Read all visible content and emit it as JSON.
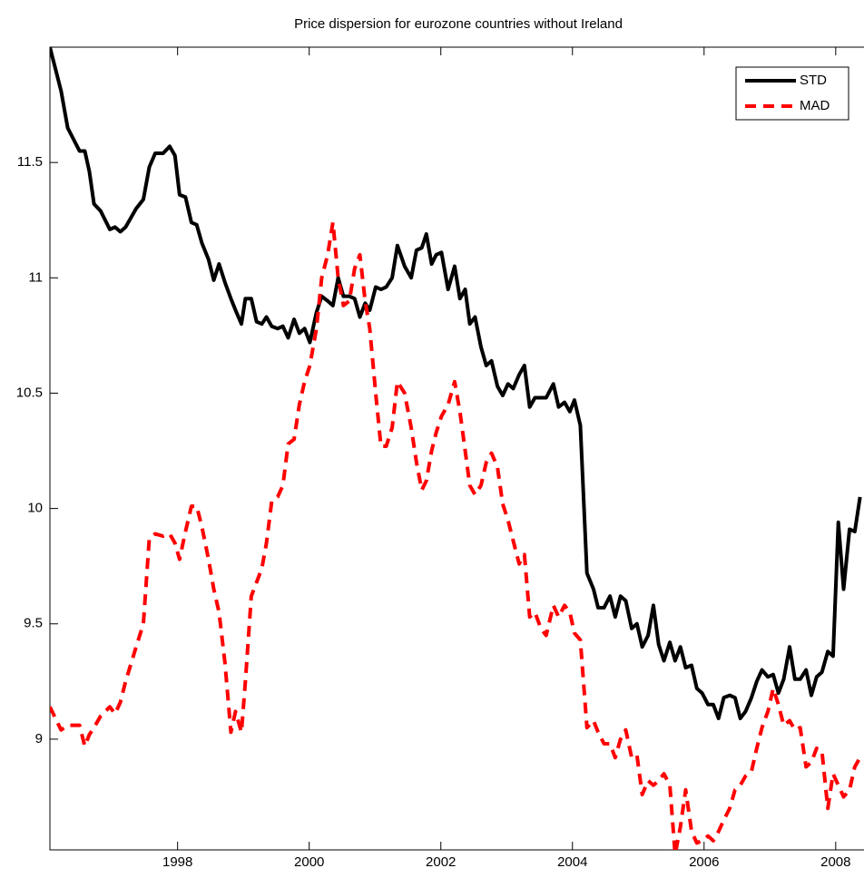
{
  "chart_data": {
    "type": "line",
    "title": "Price dispersion for eurozone countries without Ireland",
    "x": [
      1996.06,
      1996.23,
      1996.33,
      1996.51,
      1996.59,
      1996.66,
      1996.73,
      1996.83,
      1996.97,
      1997.05,
      1997.13,
      1997.21,
      1997.37,
      1997.48,
      1997.57,
      1997.66,
      1997.78,
      1997.88,
      1997.96,
      1998.03,
      1998.12,
      1998.21,
      1998.29,
      1998.37,
      1998.47,
      1998.55,
      1998.63,
      1998.72,
      1998.81,
      1998.88,
      1998.97,
      1999.03,
      1999.12,
      1999.2,
      1999.28,
      1999.35,
      1999.43,
      1999.52,
      1999.6,
      1999.68,
      1999.77,
      1999.85,
      1999.93,
      2000.01,
      2000.11,
      2000.19,
      2000.28,
      2000.36,
      2000.44,
      2000.52,
      2000.61,
      2000.69,
      2000.77,
      2000.85,
      2000.92,
      2001.01,
      2001.09,
      2001.17,
      2001.26,
      2001.34,
      2001.45,
      2001.55,
      2001.63,
      2001.71,
      2001.78,
      2001.86,
      2001.93,
      2002.01,
      2002.11,
      2002.21,
      2002.29,
      2002.37,
      2002.44,
      2002.52,
      2002.61,
      2002.69,
      2002.77,
      2002.86,
      2002.94,
      2003.02,
      2003.1,
      2003.19,
      2003.27,
      2003.35,
      2003.43,
      2003.52,
      2003.6,
      2003.71,
      2003.79,
      2003.88,
      2003.96,
      2004.03,
      2004.12,
      2004.22,
      2004.32,
      2004.39,
      2004.48,
      2004.57,
      2004.65,
      2004.73,
      2004.81,
      2004.9,
      2004.98,
      2005.06,
      2005.15,
      2005.23,
      2005.31,
      2005.39,
      2005.48,
      2005.56,
      2005.64,
      2005.72,
      2005.81,
      2005.89,
      2005.97,
      2006.06,
      2006.14,
      2006.22,
      2006.3,
      2006.39,
      2006.47,
      2006.55,
      2006.63,
      2006.72,
      2006.8,
      2006.88,
      2006.97,
      2007.05,
      2007.13,
      2007.21,
      2007.3,
      2007.38,
      2007.46,
      2007.55,
      2007.63,
      2007.71,
      2007.79,
      2007.88,
      2007.96,
      2008.04,
      2008.12,
      2008.21,
      2008.29,
      2008.37
    ],
    "series": [
      {
        "name": "STD",
        "color": "#000000",
        "line_style": "solid",
        "values": [
          12,
          11.81,
          11.65,
          11.55,
          11.55,
          11.46,
          11.32,
          11.29,
          11.21,
          11.22,
          11.2,
          11.22,
          11.3,
          11.34,
          11.48,
          11.54,
          11.54,
          11.57,
          11.53,
          11.36,
          11.35,
          11.24,
          11.23,
          11.15,
          11.08,
          10.99,
          11.06,
          10.98,
          10.91,
          10.86,
          10.8,
          10.91,
          10.91,
          10.81,
          10.8,
          10.83,
          10.79,
          10.78,
          10.79,
          10.74,
          10.82,
          10.76,
          10.78,
          10.72,
          10.85,
          10.92,
          10.9,
          10.88,
          11,
          10.92,
          10.92,
          10.91,
          10.83,
          10.89,
          10.86,
          10.96,
          10.95,
          10.96,
          11,
          11.14,
          11.05,
          11,
          11.12,
          11.13,
          11.19,
          11.06,
          11.1,
          11.11,
          10.95,
          11.05,
          10.91,
          10.95,
          10.8,
          10.83,
          10.7,
          10.62,
          10.64,
          10.53,
          10.49,
          10.54,
          10.52,
          10.58,
          10.62,
          10.44,
          10.48,
          10.48,
          10.48,
          10.54,
          10.44,
          10.46,
          10.42,
          10.47,
          10.36,
          9.72,
          9.65,
          9.57,
          9.57,
          9.62,
          9.53,
          9.62,
          9.6,
          9.48,
          9.5,
          9.4,
          9.45,
          9.58,
          9.41,
          9.34,
          9.42,
          9.34,
          9.4,
          9.31,
          9.32,
          9.22,
          9.2,
          9.15,
          9.15,
          9.09,
          9.18,
          9.19,
          9.18,
          9.09,
          9.12,
          9.18,
          9.25,
          9.3,
          9.27,
          9.28,
          9.2,
          9.26,
          9.4,
          9.26,
          9.26,
          9.3,
          9.19,
          9.27,
          9.29,
          9.38,
          9.36,
          9.94,
          9.65,
          9.91,
          9.9,
          10.05
        ]
      },
      {
        "name": "MAD",
        "color": "#ff0000",
        "line_style": "dashed",
        "values": [
          9.14,
          9.04,
          9.06,
          9.06,
          8.97,
          9.02,
          9.05,
          9.1,
          9.14,
          9.11,
          9.16,
          9.25,
          9.4,
          9.5,
          9.87,
          9.89,
          9.88,
          9.89,
          9.85,
          9.78,
          9.9,
          10.01,
          10.01,
          9.92,
          9.78,
          9.65,
          9.55,
          9.33,
          9.03,
          9.12,
          9.03,
          9.25,
          9.62,
          9.68,
          9.74,
          9.85,
          10.03,
          10.05,
          10.1,
          10.28,
          10.3,
          10.45,
          10.55,
          10.62,
          10.78,
          11,
          11.1,
          11.24,
          11,
          10.88,
          10.9,
          11.04,
          11.1,
          10.9,
          10.78,
          10.5,
          10.27,
          10.27,
          10.35,
          10.55,
          10.5,
          10.35,
          10.2,
          10.08,
          10.12,
          10.25,
          10.33,
          10.4,
          10.45,
          10.55,
          10.42,
          10.25,
          10.1,
          10.06,
          10.1,
          10.2,
          10.24,
          10.18,
          10.02,
          9.95,
          9.86,
          9.76,
          9.8,
          9.53,
          9.55,
          9.48,
          9.45,
          9.58,
          9.53,
          9.58,
          9.55,
          9.46,
          9.43,
          9.05,
          9.08,
          9.03,
          8.98,
          8.98,
          8.92,
          9,
          9.04,
          8.92,
          8.93,
          8.76,
          8.82,
          8.8,
          8.82,
          8.85,
          8.8,
          8.5,
          8.62,
          8.78,
          8.6,
          8.55,
          8.56,
          8.58,
          8.56,
          8.6,
          8.65,
          8.7,
          8.78,
          8.8,
          8.84,
          8.86,
          8.96,
          9.05,
          9.12,
          9.22,
          9.15,
          9.06,
          9.08,
          9.04,
          9.05,
          8.88,
          8.9,
          8.96,
          8.95,
          8.7,
          8.85,
          8.8,
          8.75,
          8.78,
          8.88,
          8.92
        ]
      }
    ],
    "xlim": [
      1996.06,
      2008.43
    ],
    "xticks": [
      1998,
      2000,
      2002,
      2004,
      2006,
      2008
    ],
    "ylim": [
      8.52,
      12
    ],
    "yticks": [
      9,
      9.5,
      10,
      10.5,
      11,
      11.5
    ],
    "grid": false,
    "legend": "upper right"
  }
}
